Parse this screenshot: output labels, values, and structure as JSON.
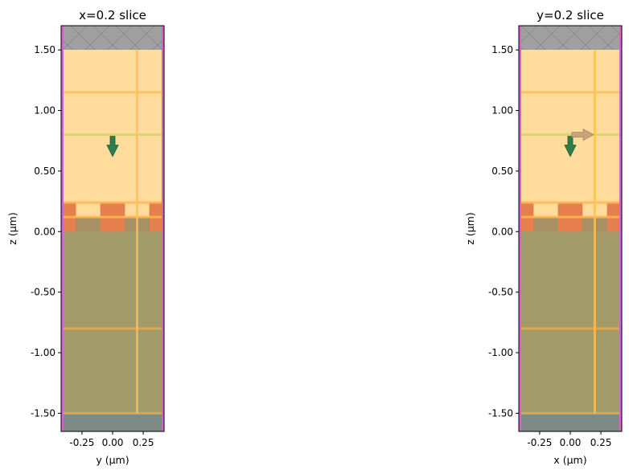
{
  "chart_data": [
    {
      "type": "structure-slice",
      "title": "x=0.2 slice",
      "xlabel": "y (μm)",
      "ylabel": "z (μm)",
      "xlim": [
        -0.42,
        0.42
      ],
      "ylim": [
        -1.65,
        1.7
      ],
      "xticks": [
        -0.25,
        0.0,
        0.25
      ],
      "xtick_labels": [
        "-0.25",
        "0.00",
        "0.25"
      ],
      "yticks": [
        1.5,
        1.0,
        0.5,
        0.0,
        -0.5,
        -1.0,
        -1.5
      ],
      "ytick_labels": [
        "1.50",
        "1.00",
        "0.50",
        "0.00",
        "-0.50",
        "-1.00",
        "-1.50"
      ],
      "regions": [
        {
          "name": "pml-top",
          "z": [
            1.5,
            1.7
          ],
          "color": "#a0a0a0",
          "hatch": true
        },
        {
          "name": "superstrate",
          "z": [
            0.24,
            1.5
          ],
          "color": "#ffdc9c"
        },
        {
          "name": "substrate",
          "z": [
            0.0,
            0.12
          ],
          "color": "#a89066"
        },
        {
          "name": "substrate-lower",
          "z": [
            -1.5,
            0.0
          ],
          "color": "#a39b6a"
        },
        {
          "name": "pml-bottom",
          "z": [
            -1.65,
            -1.5
          ],
          "color": "#7d8a85"
        }
      ],
      "grating": {
        "z": [
          0.0,
          0.24
        ],
        "color": "#e5804e",
        "segments": [
          [
            -0.42,
            -0.3
          ],
          [
            -0.1,
            0.1
          ],
          [
            0.3,
            0.42
          ]
        ],
        "small_block": [
          [
            0.1,
            0.3
          ],
          [
            0.12,
            0.24
          ]
        ]
      },
      "h_lines": [
        {
          "z": 1.15,
          "color": "#ffc04d"
        },
        {
          "z": 0.8,
          "color": "#d2d46a"
        },
        {
          "z": 0.24,
          "color": "#ffb84d"
        },
        {
          "z": 0.12,
          "color": "#ffb84d"
        },
        {
          "z": -0.8,
          "color": "#e8a84a"
        },
        {
          "z": -1.5,
          "color": "#e8a84a"
        }
      ],
      "v_lines": [
        {
          "x": 0.2,
          "color": "#ffc04d"
        }
      ],
      "source_arrows": [
        {
          "x": 0.0,
          "z": 0.8,
          "direction": "down",
          "color": "#2e7d4a"
        }
      ],
      "boundary_color": "#d066cc"
    },
    {
      "type": "structure-slice",
      "title": "y=0.2 slice",
      "xlabel": "x (μm)",
      "ylabel": "z (μm)",
      "xlim": [
        -0.42,
        0.42
      ],
      "ylim": [
        -1.65,
        1.7
      ],
      "xticks": [
        -0.25,
        0.0,
        0.25
      ],
      "xtick_labels": [
        "-0.25",
        "0.00",
        "0.25"
      ],
      "yticks": [
        1.5,
        1.0,
        0.5,
        0.0,
        -0.5,
        -1.0,
        -1.5
      ],
      "ytick_labels": [
        "1.50",
        "1.00",
        "0.50",
        "0.00",
        "-0.50",
        "-1.00",
        "-1.50"
      ],
      "regions": [
        {
          "name": "pml-top",
          "z": [
            1.5,
            1.7
          ],
          "color": "#a0a0a0",
          "hatch": true
        },
        {
          "name": "superstrate",
          "z": [
            0.24,
            1.5
          ],
          "color": "#ffdc9c"
        },
        {
          "name": "substrate",
          "z": [
            0.0,
            0.12
          ],
          "color": "#a89066"
        },
        {
          "name": "substrate-lower",
          "z": [
            -1.5,
            0.0
          ],
          "color": "#a39b6a"
        },
        {
          "name": "pml-bottom",
          "z": [
            -1.65,
            -1.5
          ],
          "color": "#7d8a85"
        }
      ],
      "grating": {
        "z": [
          0.0,
          0.24
        ],
        "color": "#e5804e",
        "segments": [
          [
            -0.42,
            -0.3
          ],
          [
            -0.1,
            0.1
          ],
          [
            0.3,
            0.42
          ]
        ],
        "small_block": [
          [
            0.1,
            0.3
          ],
          [
            0.12,
            0.24
          ]
        ]
      },
      "h_lines": [
        {
          "z": 1.15,
          "color": "#ffc04d"
        },
        {
          "z": 0.8,
          "color": "#d2d46a"
        },
        {
          "z": 0.24,
          "color": "#ffb84d"
        },
        {
          "z": 0.12,
          "color": "#ffb84d"
        },
        {
          "z": -0.8,
          "color": "#e8a84a"
        },
        {
          "z": -1.5,
          "color": "#e8a84a"
        }
      ],
      "v_lines": [
        {
          "x": 0.2,
          "color": "#ffc04d"
        }
      ],
      "source_arrows": [
        {
          "x": 0.0,
          "z": 0.8,
          "direction": "down",
          "color": "#2e7d4a"
        },
        {
          "x": 0.0,
          "z": 0.8,
          "direction": "right",
          "color": "#c9a478"
        }
      ],
      "boundary_color": "#d066cc"
    }
  ]
}
